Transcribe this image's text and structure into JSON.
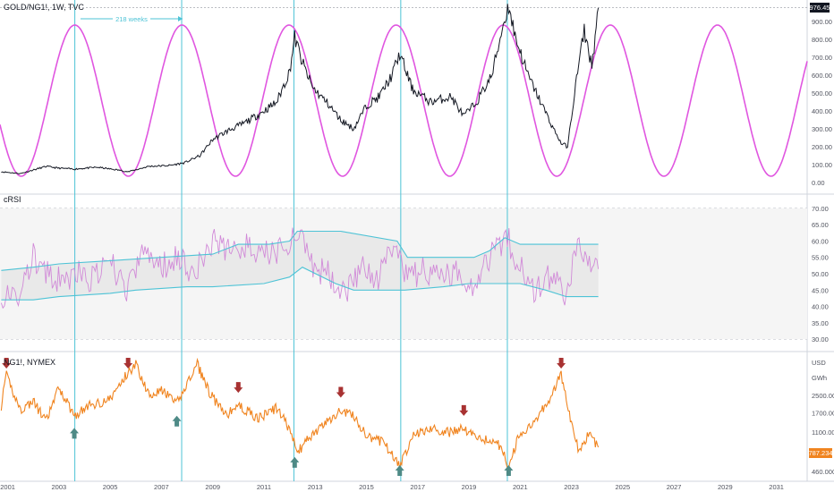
{
  "legend": {
    "main_title": "GOLD/NG1!, 1W, TVC",
    "crsi_title": "cRSI",
    "ng_title": "NG1!, NYMEX"
  },
  "cycle_annotation": "218 weeks",
  "price_tags": {
    "main_last": "976.45",
    "ng_last": "787.234",
    "ng_unit": "USD",
    "ng_unit2": "GWh"
  },
  "colors": {
    "price_line": "#131722",
    "sine": "#e056e0",
    "crsi_line": "#d18ad8",
    "band": "#4dc3d6",
    "band_fill": "#e6e6e6",
    "ng_line": "#f0841f",
    "cycle_line": "#4dc3d6",
    "down_arrow": "#a83232",
    "up_arrow": "#4e8a86",
    "ng_tag_bg": "#f0841f"
  },
  "chart_data": [
    {
      "type": "line",
      "title": "GOLD/NG1!, 1W, TVC",
      "xlim": [
        2000.7,
        2032.2
      ],
      "ylim": [
        -50,
        1000
      ],
      "y_ticks": [
        "0.00",
        "100.00",
        "200.00",
        "300.00",
        "400.00",
        "500.00",
        "600.00",
        "700.00",
        "800.00",
        "900.00"
      ],
      "last_value": 976.45,
      "cycle_length": "218 weeks",
      "cycle_markers_x": [
        2003.62,
        2007.79,
        2012.17,
        2016.34,
        2020.5
      ],
      "series": [
        {
          "name": "GOLD/NG1!",
          "x": [
            2000.75,
            2001.5,
            2002.5,
            2003.0,
            2003.6,
            2004.5,
            2005.3,
            2005.7,
            2006.5,
            2007.3,
            2007.9,
            2008.5,
            2009.0,
            2009.6,
            2010.2,
            2010.8,
            2011.5,
            2012.0,
            2012.2,
            2012.5,
            2012.9,
            2013.5,
            2014.0,
            2014.5,
            2015.0,
            2015.5,
            2016.0,
            2016.3,
            2016.8,
            2017.5,
            2018.3,
            2018.8,
            2019.3,
            2019.9,
            2020.3,
            2020.55,
            2020.8,
            2021.3,
            2021.9,
            2022.3,
            2022.6,
            2022.85,
            2023.2,
            2023.5,
            2023.8,
            2024.05
          ],
          "values": [
            60,
            50,
            90,
            80,
            75,
            85,
            70,
            60,
            90,
            95,
            110,
            150,
            240,
            290,
            330,
            380,
            450,
            620,
            810,
            670,
            530,
            440,
            350,
            300,
            430,
            480,
            600,
            720,
            520,
            450,
            480,
            370,
            450,
            600,
            860,
            990,
            820,
            600,
            420,
            300,
            220,
            200,
            580,
            850,
            650,
            976
          ]
        },
        {
          "name": "cycle",
          "description_amplitude": [
            35,
            880
          ],
          "period_years": 4.18,
          "peak_x": 2003.62
        }
      ]
    },
    {
      "type": "line",
      "title": "cRSI",
      "xlim": [
        2000.7,
        2032.2
      ],
      "ylim": [
        27,
        73
      ],
      "y_ticks": [
        "30.00",
        "35.00",
        "40.00",
        "45.00",
        "50.00",
        "55.00",
        "60.00",
        "65.00",
        "70.00"
      ],
      "series": [
        {
          "name": "cRSI",
          "x": [
            2000.75,
            2001.3,
            2002.0,
            2002.8,
            2003.6,
            2004.3,
            2005.0,
            2005.7,
            2006.3,
            2007.0,
            2007.6,
            2008.3,
            2009.0,
            2009.6,
            2010.2,
            2010.8,
            2011.5,
            2012.0,
            2012.3,
            2012.8,
            2013.5,
            2014.2,
            2014.8,
            2015.4,
            2016.0,
            2016.6,
            2017.2,
            2017.8,
            2018.5,
            2019.2,
            2019.9,
            2020.5,
            2021.0,
            2021.6,
            2022.2,
            2022.8,
            2023.3,
            2023.7,
            2024.05
          ],
          "values": [
            44,
            41,
            55,
            47,
            50,
            48,
            53,
            45,
            57,
            52,
            56,
            50,
            60,
            57,
            59,
            55,
            57,
            60,
            64,
            52,
            50,
            45,
            52,
            47,
            58,
            48,
            51,
            49,
            50,
            47,
            57,
            61,
            52,
            45,
            49,
            44,
            60,
            52,
            53
          ]
        },
        {
          "name": "upper band",
          "x": [
            2000.75,
            2002.0,
            2003.0,
            2005.0,
            2007.0,
            2009.0,
            2010.0,
            2011.2,
            2012.0,
            2012.3,
            2014.0,
            2016.2,
            2016.6,
            2018.5,
            2019.2,
            2019.8,
            2020.4,
            2021.0,
            2022.0,
            2023.0,
            2024.05
          ],
          "values": [
            51,
            52,
            53,
            54,
            55,
            56,
            59,
            59,
            60,
            63,
            63,
            60,
            55,
            55,
            55,
            57,
            61,
            59,
            59,
            59,
            59
          ]
        },
        {
          "name": "lower band",
          "x": [
            2000.75,
            2002.0,
            2003.0,
            2005.0,
            2006.0,
            2008.0,
            2009.0,
            2011.0,
            2012.0,
            2012.5,
            2013.8,
            2014.5,
            2016.5,
            2018.0,
            2019.0,
            2020.3,
            2021.0,
            2022.0,
            2022.8,
            2023.5,
            2024.05
          ],
          "values": [
            42,
            42,
            43,
            44,
            45,
            46,
            46,
            47,
            49,
            52,
            47,
            45,
            45,
            46,
            47,
            47,
            47,
            45,
            43,
            43,
            43
          ]
        }
      ]
    },
    {
      "type": "line",
      "title": "NG1!, NYMEX",
      "xlim": [
        2000.7,
        2032.2
      ],
      "y_scale": "log",
      "ylim": [
        400,
        6000
      ],
      "y_ticks": [
        "460.000",
        "1100.000",
        "1700.000",
        "2500.000"
      ],
      "last_value": 787.234,
      "unit": "USD / GWh",
      "series": [
        {
          "name": "NG1!",
          "x": [
            2000.75,
            2000.95,
            2001.5,
            2002.0,
            2002.5,
            2003.0,
            2003.6,
            2004.2,
            2005.0,
            2005.7,
            2006.0,
            2006.5,
            2007.0,
            2007.6,
            2008.4,
            2008.9,
            2009.5,
            2010.0,
            2010.8,
            2011.5,
            2012.0,
            2012.3,
            2012.8,
            2013.5,
            2014.0,
            2014.5,
            2015.0,
            2015.6,
            2016.0,
            2016.3,
            2016.8,
            2017.5,
            2018.2,
            2018.8,
            2019.3,
            2019.9,
            2020.3,
            2020.55,
            2020.9,
            2021.6,
            2022.1,
            2022.6,
            2023.0,
            2023.3,
            2023.7,
            2024.05
          ],
          "values": [
            2000,
            3900,
            1800,
            2200,
            1400,
            3000,
            1600,
            2000,
            2300,
            4200,
            5000,
            2600,
            2800,
            2100,
            5000,
            2600,
            1600,
            2000,
            1500,
            1900,
            1200,
            700,
            1000,
            1400,
            1800,
            1600,
            1000,
            900,
            700,
            500,
            1050,
            1200,
            1100,
            1200,
            1000,
            900,
            800,
            480,
            950,
            1500,
            2200,
            4000,
            1300,
            700,
            1100,
            787
          ]
        }
      ],
      "markers": [
        {
          "type": "down-arrow",
          "x": 2000.95
        },
        {
          "type": "down-arrow",
          "x": 2005.7
        },
        {
          "type": "down-arrow",
          "x": 2010.0
        },
        {
          "type": "down-arrow",
          "x": 2014.0
        },
        {
          "type": "down-arrow",
          "x": 2018.8
        },
        {
          "type": "down-arrow",
          "x": 2022.6
        },
        {
          "type": "up-arrow",
          "x": 2003.6
        },
        {
          "type": "up-arrow",
          "x": 2007.6
        },
        {
          "type": "up-arrow",
          "x": 2012.2
        },
        {
          "type": "up-arrow",
          "x": 2016.3
        },
        {
          "type": "up-arrow",
          "x": 2020.55
        }
      ]
    }
  ],
  "x_axis": {
    "ticks": [
      2001,
      2003,
      2005,
      2007,
      2009,
      2011,
      2013,
      2015,
      2017,
      2019,
      2021,
      2023,
      2025,
      2027,
      2029,
      2031
    ],
    "labels": [
      "2001",
      "2003",
      "2005",
      "2007",
      "2009",
      "2011",
      "2013",
      "2015",
      "2017",
      "2019",
      "2021",
      "2023",
      "2025",
      "2027",
      "2029",
      "2031"
    ]
  }
}
